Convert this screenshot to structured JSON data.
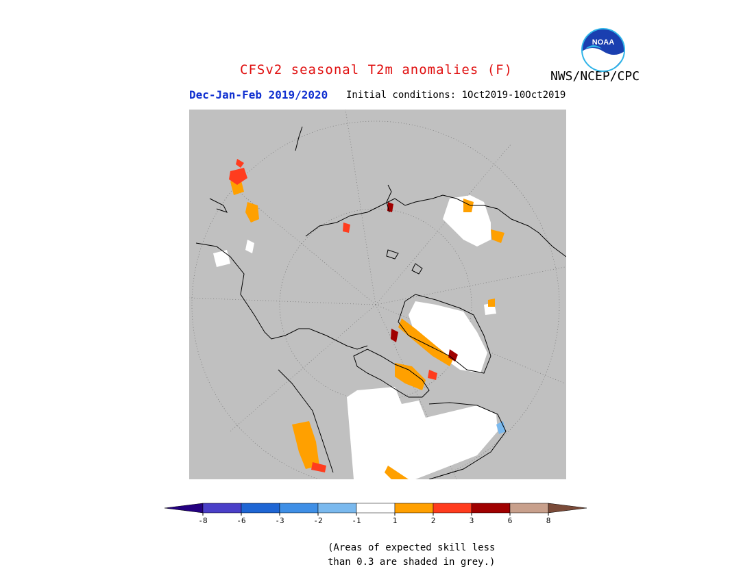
{
  "header": {
    "title": "CFSv2 seasonal T2m anomalies (F)",
    "season": "Dec-Jan-Feb 2019/2020",
    "initial_conditions": "Initial conditions: 1Oct2019-10Oct2019",
    "agency": "NWS/NCEP/CPC",
    "logo_text": "NOAA"
  },
  "colorbar": {
    "colors": [
      "#240080",
      "#4a3fc8",
      "#1f66d4",
      "#3f8fe6",
      "#7ab9ee",
      "#ffffff",
      "#ffa000",
      "#ff3c1e",
      "#a00000",
      "#c8a08c",
      "#7a4a38"
    ],
    "labels": [
      "-8",
      "-6",
      "-3",
      "-2",
      "-1",
      "1",
      "2",
      "3",
      "6",
      "8"
    ]
  },
  "note": {
    "line1": "(Areas of expected skill less",
    "line2": "than 0.3 are shaded in grey.)"
  },
  "map": {
    "background": "#c0c0c0",
    "grey_meaning": "expected skill less than 0.3"
  }
}
